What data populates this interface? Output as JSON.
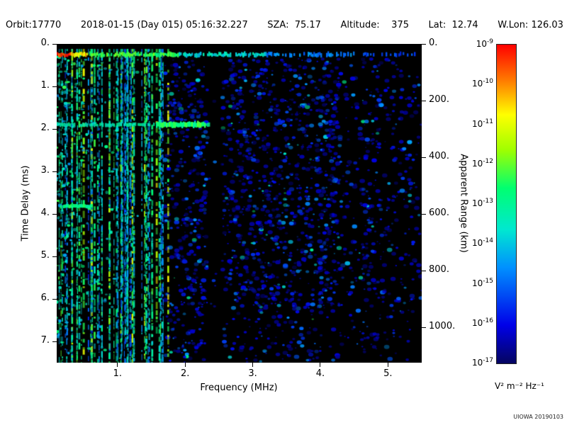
{
  "header": {
    "orbit": "Orbit:17770",
    "datetime": "2018-01-15 (Day 015) 05:16:32.227",
    "sza": "SZA:  75.17",
    "altitude": "Altitude:    375",
    "lat": "Lat:  12.74",
    "wlon": "W.Lon: 126.03"
  },
  "watermark": "UIOWA 20190103",
  "chart_data": {
    "type": "heatmap",
    "description": "Radar sounder ionogram: received spectral density vs frequency and time delay; dense green/cyan vertical interference streaks below ~1.8 MHz, strong echo band near 0.25 ms across all frequencies (red/orange at lowest frequencies fading to blue), bright cyan horizontal band near 1.9 ms out to ~2.35 MHz, scattered faint blue noise speckles at higher frequencies",
    "xlabel": "Frequency (MHz)",
    "ylabel_left": "Time Delay (ms)",
    "ylabel_right": "Apparent Range (km)",
    "xlim": [
      0.1,
      5.5
    ],
    "ylim_ms": [
      0.0,
      7.5
    ],
    "x_ticks": {
      "values": [
        1,
        2,
        3,
        4,
        5
      ],
      "labels": [
        "1.",
        "2.",
        "3.",
        "4.",
        "5."
      ]
    },
    "y_ticks_left": {
      "values": [
        0,
        1,
        2,
        3,
        4,
        5,
        6,
        7
      ],
      "labels": [
        "0.",
        "1.",
        "2.",
        "3.",
        "4.",
        "5.",
        "6.",
        "7."
      ]
    },
    "y_ticks_right": {
      "values_km": [
        0,
        200,
        400,
        600,
        800,
        1000
      ],
      "labels": [
        "0.",
        "200.",
        "400.",
        "600.",
        "800.",
        "1000."
      ],
      "km_per_ms": 150
    },
    "colorbar": {
      "scale": "log10",
      "min_exponent": -17,
      "max_exponent": -9,
      "tick_exponents": [
        -9,
        -10,
        -11,
        -12,
        -13,
        -14,
        -15,
        -16,
        -17
      ],
      "units": "V² m⁻² Hz⁻¹",
      "stops": [
        [
          0.0,
          "#050560"
        ],
        [
          0.12,
          "#0000e8"
        ],
        [
          0.3,
          "#0090ff"
        ],
        [
          0.42,
          "#00e8d0"
        ],
        [
          0.55,
          "#00ff70"
        ],
        [
          0.67,
          "#a0ff00"
        ],
        [
          0.78,
          "#ffff00"
        ],
        [
          0.89,
          "#ff7800"
        ],
        [
          1.0,
          "#ff0000"
        ]
      ]
    },
    "features": {
      "top_band": {
        "y_ms": 0.25,
        "x_range": [
          0.1,
          5.5
        ]
      },
      "vertical_streaks": {
        "x_range": [
          0.1,
          1.78
        ],
        "y_range_ms": [
          0.1,
          7.5
        ],
        "count": 60
      },
      "bright_streaks_mhz": [
        0.33,
        0.5,
        0.62,
        0.88,
        1.05,
        1.22,
        1.4,
        1.58,
        1.75
      ],
      "delay_band": {
        "y_ms": 1.9,
        "x_range": [
          0.1,
          2.35
        ],
        "bright_x_range": [
          1.55,
          2.3
        ]
      },
      "second_band": {
        "y_ms": 3.82,
        "x_range": [
          0.15,
          0.62
        ]
      },
      "speckles": {
        "x_range": [
          1.7,
          5.5
        ],
        "y_range_ms": [
          0.35,
          7.5
        ],
        "count": 2600,
        "gap_x_range": [
          2.33,
          2.55
        ],
        "enhanced_x": [
          2.65,
          3.35,
          4.7
        ]
      }
    },
    "render_seed": 7
  }
}
